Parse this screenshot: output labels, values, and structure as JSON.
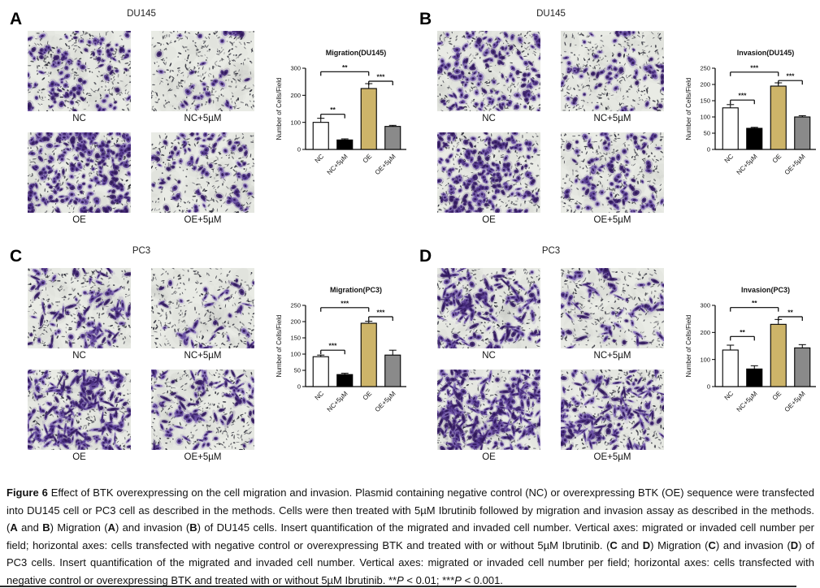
{
  "figure": {
    "panels": [
      {
        "label": "A",
        "title": "DU145",
        "cell_line": "DU145",
        "assay": "Migration",
        "images": [
          {
            "label": "NC",
            "density": 100
          },
          {
            "label": "NC+5µM",
            "density": 35
          },
          {
            "label": "OE",
            "density": 225
          },
          {
            "label": "OE+5µM",
            "density": 85
          }
        ]
      },
      {
        "label": "B",
        "title": "DU145",
        "cell_line": "DU145",
        "assay": "Invasion",
        "images": [
          {
            "label": "NC",
            "density": 128
          },
          {
            "label": "NC+5µM",
            "density": 65
          },
          {
            "label": "OE",
            "density": 195
          },
          {
            "label": "OE+5µM",
            "density": 100
          }
        ]
      },
      {
        "label": "C",
        "title": "PC3",
        "cell_line": "PC3",
        "assay": "Migration",
        "images": [
          {
            "label": "NC",
            "density": 92
          },
          {
            "label": "NC+5µM",
            "density": 37
          },
          {
            "label": "OE",
            "density": 195
          },
          {
            "label": "OE+5µM",
            "density": 97
          }
        ]
      },
      {
        "label": "D",
        "title": "PC3",
        "cell_line": "PC3",
        "assay": "Invasion",
        "images": [
          {
            "label": "NC",
            "density": 135
          },
          {
            "label": "NC+5µM",
            "density": 65
          },
          {
            "label": "OE",
            "density": 230
          },
          {
            "label": "OE+5µM",
            "density": 143
          }
        ]
      }
    ]
  },
  "chart_data": [
    {
      "type": "bar",
      "title": "Migration(DU145)",
      "xlabel": "",
      "ylabel": "Number of Cells/Field",
      "ylim": [
        0,
        300
      ],
      "yticks": [
        0,
        100,
        200,
        300
      ],
      "categories": [
        "NC",
        "NC+5µM",
        "OE",
        "OE+5µM"
      ],
      "values": [
        100,
        35,
        225,
        85
      ],
      "errors": [
        15,
        4,
        18,
        4
      ],
      "bar_colors": [
        "#ffffff",
        "#000000",
        "#cdb469",
        "#8a8a8a"
      ],
      "significance": [
        {
          "from": 0,
          "to": 1,
          "y": 130,
          "label": "**"
        },
        {
          "from": 0,
          "to": 2,
          "y": 287,
          "label": "**"
        },
        {
          "from": 2,
          "to": 3,
          "y": 252,
          "label": "***"
        }
      ]
    },
    {
      "type": "bar",
      "title": "Invasion(DU145)",
      "xlabel": "",
      "ylabel": "Number of Cells/Field",
      "ylim": [
        0,
        250
      ],
      "yticks": [
        0,
        50,
        100,
        150,
        200,
        250
      ],
      "categories": [
        "NC",
        "NC+5µM",
        "OE",
        "OE+5µM"
      ],
      "values": [
        128,
        65,
        195,
        100
      ],
      "errors": [
        10,
        3,
        10,
        4
      ],
      "bar_colors": [
        "#ffffff",
        "#000000",
        "#cdb469",
        "#8a8a8a"
      ],
      "significance": [
        {
          "from": 0,
          "to": 1,
          "y": 152,
          "label": "***"
        },
        {
          "from": 0,
          "to": 2,
          "y": 238,
          "label": "***"
        },
        {
          "from": 2,
          "to": 3,
          "y": 212,
          "label": "***"
        }
      ]
    },
    {
      "type": "bar",
      "title": "Migration(PC3)",
      "xlabel": "",
      "ylabel": "Number of Cells/Field",
      "ylim": [
        0,
        250
      ],
      "yticks": [
        0,
        50,
        100,
        150,
        200,
        250
      ],
      "categories": [
        "NC",
        "NC+5µM",
        "OE",
        "OE+5µM"
      ],
      "values": [
        92,
        37,
        195,
        97
      ],
      "errors": [
        5,
        4,
        6,
        15
      ],
      "bar_colors": [
        "#ffffff",
        "#000000",
        "#cdb469",
        "#8a8a8a"
      ],
      "significance": [
        {
          "from": 0,
          "to": 1,
          "y": 112,
          "label": "***"
        },
        {
          "from": 0,
          "to": 2,
          "y": 243,
          "label": "***"
        },
        {
          "from": 2,
          "to": 3,
          "y": 215,
          "label": "***"
        }
      ]
    },
    {
      "type": "bar",
      "title": "Invasion(PC3)",
      "xlabel": "",
      "ylabel": "Number of Cells/Field",
      "ylim": [
        0,
        300
      ],
      "yticks": [
        0,
        100,
        200,
        300
      ],
      "categories": [
        "NC",
        "NC+5µM",
        "OE",
        "OE+5µM"
      ],
      "values": [
        135,
        65,
        230,
        143
      ],
      "errors": [
        18,
        12,
        18,
        12
      ],
      "bar_colors": [
        "#ffffff",
        "#000000",
        "#cdb469",
        "#8a8a8a"
      ],
      "significance": [
        {
          "from": 0,
          "to": 1,
          "y": 185,
          "label": "**"
        },
        {
          "from": 0,
          "to": 2,
          "y": 292,
          "label": "**"
        },
        {
          "from": 2,
          "to": 3,
          "y": 258,
          "label": "**"
        }
      ]
    }
  ],
  "caption": {
    "segments": [
      {
        "t": "Figure 6 ",
        "s": "b"
      },
      {
        "t": "Effect of BTK overexpressing on the cell migration and invasion. Plasmid containing negative control (NC) or overexpressing BTK (OE) sequence were transfected into DU145 cell or PC3 cell as described in the methods. Cells were then treated with 5µM Ibrutinib followed by migration and invasion assay as described in the methods. (",
        "s": ""
      },
      {
        "t": "A",
        "s": "b"
      },
      {
        "t": " and ",
        "s": ""
      },
      {
        "t": "B",
        "s": "b"
      },
      {
        "t": ") Migration (",
        "s": ""
      },
      {
        "t": "A",
        "s": "b"
      },
      {
        "t": ") and invasion (",
        "s": ""
      },
      {
        "t": "B",
        "s": "b"
      },
      {
        "t": ") of DU145 cells. Insert quantification of the migrated and invaded cell number. Vertical axes: migrated or invaded cell number per field; horizontal axes: cells transfected with negative control or overexpressing BTK and treated with or without 5µM Ibrutinib. (",
        "s": ""
      },
      {
        "t": "C",
        "s": "b"
      },
      {
        "t": " and ",
        "s": ""
      },
      {
        "t": "D",
        "s": "b"
      },
      {
        "t": ") Migration (",
        "s": ""
      },
      {
        "t": "C",
        "s": "b"
      },
      {
        "t": ") and invasion (",
        "s": ""
      },
      {
        "t": "D",
        "s": "b"
      },
      {
        "t": ") of PC3 cells. Insert quantification of the migrated and invaded cell number. Vertical axes: migrated or invaded cell number per field; horizontal axes: cells transfected with negative control or overexpressing BTK and treated with or without 5µM Ibrutinib. **",
        "s": ""
      },
      {
        "t": "P",
        "s": "i"
      },
      {
        "t": " < 0.01; ***",
        "s": ""
      },
      {
        "t": "P",
        "s": "i"
      },
      {
        "t": " < 0.001.",
        "s": ""
      }
    ]
  },
  "colors": {
    "stain_purple": "#54398f",
    "membrane_speck": "#23232e",
    "micrograph_bg": "#e9ebe5",
    "bar_tan": "#cdb469",
    "bar_gray": "#8a8a8a"
  }
}
